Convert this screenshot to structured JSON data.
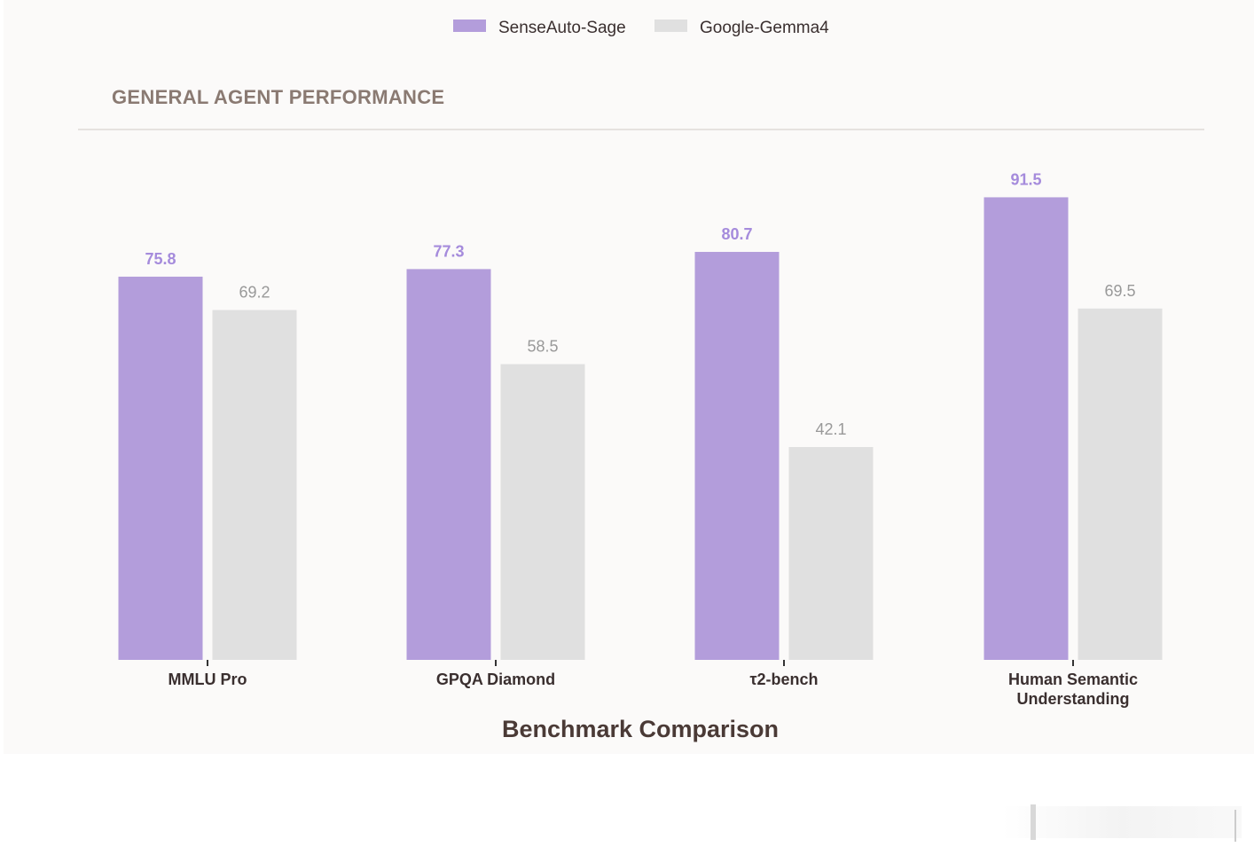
{
  "colors": {
    "series_a": "#b39ddb",
    "series_a_label": "#a58bdc",
    "series_b": "#e0e0e0",
    "series_b_label": "#999999",
    "divider": "#e6e2df"
  },
  "chart_data": {
    "type": "bar",
    "section_title": "GENERAL AGENT PERFORMANCE",
    "xlabel": "Benchmark Comparison",
    "ylabel": "",
    "ylim": [
      0,
      100
    ],
    "grid": false,
    "legend_position": "top-center",
    "categories": [
      [
        "MMLU Pro"
      ],
      [
        "GPQA Diamond"
      ],
      [
        "τ2-bench"
      ],
      [
        "Human Semantic",
        "Understanding"
      ]
    ],
    "series": [
      {
        "name": "SenseAuto-Sage",
        "values": [
          75.8,
          77.3,
          80.7,
          91.5
        ]
      },
      {
        "name": "Google-Gemma4",
        "values": [
          69.2,
          58.5,
          42.1,
          69.5
        ]
      }
    ]
  }
}
